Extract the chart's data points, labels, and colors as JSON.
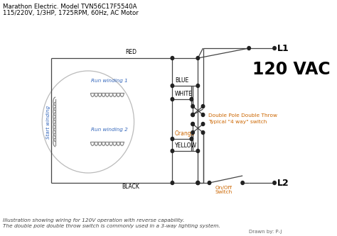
{
  "title_line1": "Marathon Electric. Model TVN56C17F5540A",
  "title_line2": "115/220V, 1/3HP, 1725RPM, 60Hz, AC Motor",
  "footer_line1": "Illustration showing wiring for 120V operation with reverse capability.",
  "footer_line2": "The double pole double throw switch is commonly used in a 3-way lighting system.",
  "footer_right": "Drawn by: P-J",
  "vac_label": "120 VAC",
  "l1_label": "L1",
  "l2_label": "L2",
  "switch_label1": "Double Pole Double Throw",
  "switch_label2": "Typical \"4 way\" switch",
  "onoff_label1": "On/Off",
  "onoff_label2": "Switch",
  "run1_label": "Run winding 1",
  "run2_label": "Run winding 2",
  "start_label": "Start winding",
  "wire_red": "RED",
  "wire_blue": "BLUE",
  "wire_white": "WHITE",
  "wire_orange": "Orange",
  "wire_yellow": "YELLOW",
  "wire_black": "BLACK",
  "line_color": "#444444",
  "orange_color": "#cc6600",
  "blue_text_color": "#3366bb",
  "coil_color": "#888888",
  "dot_color": "#222222"
}
